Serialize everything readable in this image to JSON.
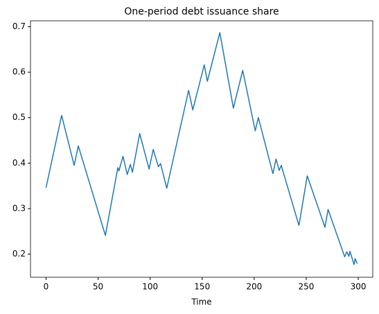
{
  "chart_data": {
    "type": "line",
    "title": "One-period debt issuance share",
    "x_label": "Time",
    "x": [
      0,
      15,
      27,
      31,
      57,
      69,
      70,
      74,
      78,
      81,
      83,
      90,
      99,
      103,
      108,
      110,
      116,
      137,
      141,
      152,
      155,
      167,
      180,
      189,
      201,
      204,
      218,
      221,
      224,
      226,
      243,
      251,
      268,
      271,
      287,
      289,
      291,
      292,
      296,
      297,
      299
    ],
    "series": [
      {
        "color": "#1f77b4",
        "values": [
          0.346,
          0.505,
          0.395,
          0.438,
          0.241,
          0.39,
          0.383,
          0.415,
          0.375,
          0.397,
          0.38,
          0.465,
          0.387,
          0.43,
          0.392,
          0.399,
          0.345,
          0.56,
          0.517,
          0.616,
          0.58,
          0.687,
          0.521,
          0.604,
          0.471,
          0.5,
          0.377,
          0.409,
          0.384,
          0.395,
          0.263,
          0.372,
          0.259,
          0.298,
          0.194,
          0.205,
          0.195,
          0.206,
          0.177,
          0.19,
          0.179
        ]
      }
    ],
    "xlim": [
      -14.95,
      313.95
    ],
    "xticks": [
      0,
      50,
      100,
      150,
      200,
      250,
      300
    ],
    "ylim": [
      0.149,
      0.713
    ],
    "yticks": [
      0.2,
      0.3,
      0.4,
      0.5,
      0.6,
      0.7
    ]
  }
}
